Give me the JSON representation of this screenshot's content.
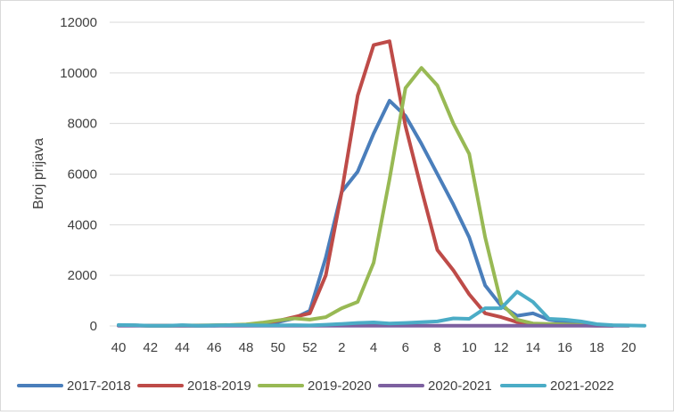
{
  "chart_data": {
    "type": "line",
    "title": "",
    "xlabel": "",
    "ylabel": "Broj prijava",
    "ylim": [
      0,
      12000
    ],
    "yticks": [
      0,
      2000,
      4000,
      6000,
      8000,
      10000,
      12000
    ],
    "grid": "horizontal",
    "legend_position": "bottom",
    "categories": [
      "40",
      "41",
      "42",
      "43",
      "44",
      "45",
      "46",
      "47",
      "48",
      "49",
      "50",
      "51",
      "52",
      "1",
      "2",
      "3",
      "4",
      "5",
      "6",
      "7",
      "8",
      "9",
      "10",
      "11",
      "12",
      "13",
      "14",
      "15",
      "16",
      "17",
      "18",
      "19",
      "20",
      "21"
    ],
    "x_tick_labels": [
      "40",
      "42",
      "44",
      "46",
      "48",
      "50",
      "52",
      "2",
      "4",
      "6",
      "8",
      "10",
      "12",
      "14",
      "16",
      "18",
      "20"
    ],
    "series": [
      {
        "name": "2017-2018",
        "color": "#4a7ebb",
        "values": [
          30,
          20,
          10,
          10,
          20,
          10,
          10,
          30,
          40,
          80,
          150,
          300,
          600,
          2700,
          5300,
          6100,
          7600,
          8900,
          8300,
          7200,
          6000,
          4800,
          3500,
          1600,
          800,
          400,
          500,
          250,
          150,
          80,
          30,
          10,
          null,
          null
        ]
      },
      {
        "name": "2018-2019",
        "color": "#be4b48",
        "values": [
          20,
          20,
          10,
          10,
          10,
          10,
          20,
          30,
          50,
          100,
          200,
          350,
          500,
          2000,
          5300,
          9100,
          11100,
          11250,
          7900,
          5400,
          3000,
          2200,
          1250,
          500,
          350,
          150,
          80,
          50,
          30,
          20,
          10,
          10,
          null,
          null
        ]
      },
      {
        "name": "2019-2020",
        "color": "#98b954",
        "values": [
          20,
          20,
          10,
          10,
          20,
          20,
          30,
          40,
          60,
          130,
          220,
          300,
          250,
          350,
          700,
          950,
          2500,
          5800,
          9400,
          10200,
          9500,
          8000,
          6800,
          3500,
          900,
          250,
          100,
          80,
          60,
          40,
          20,
          20,
          10,
          null
        ]
      },
      {
        "name": "2020-2021",
        "color": "#7d60a0",
        "values": [
          10,
          10,
          10,
          10,
          10,
          10,
          10,
          10,
          10,
          10,
          10,
          10,
          10,
          10,
          10,
          10,
          10,
          10,
          10,
          10,
          10,
          10,
          10,
          10,
          10,
          10,
          10,
          10,
          10,
          10,
          10,
          10,
          10,
          null
        ]
      },
      {
        "name": "2021-2022",
        "color": "#4bacc6",
        "values": [
          40,
          30,
          10,
          10,
          30,
          10,
          20,
          30,
          30,
          20,
          20,
          30,
          20,
          50,
          80,
          120,
          140,
          100,
          120,
          150,
          180,
          300,
          280,
          700,
          700,
          1350,
          950,
          280,
          250,
          180,
          70,
          30,
          20,
          10
        ]
      }
    ]
  }
}
